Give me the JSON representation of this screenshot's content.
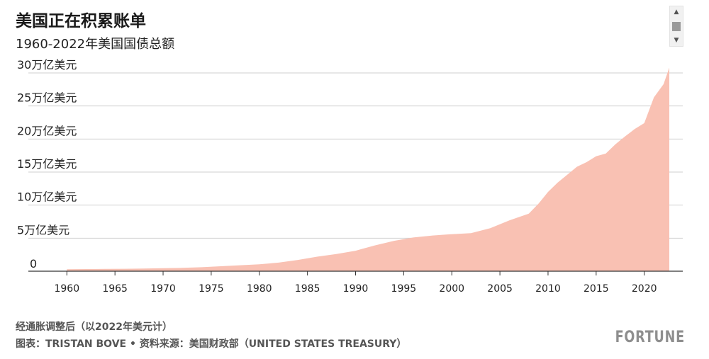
{
  "chart_data": {
    "type": "area",
    "title": "美国正在积累账单",
    "subtitle": "1960-2022年美国国债总额",
    "y_ticks": [
      0,
      5,
      10,
      15,
      20,
      25,
      30
    ],
    "y_tick_labels": [
      "0",
      "5万亿美元",
      "10万亿美元",
      "15万亿美元",
      "20万亿美元",
      "25万亿美元",
      "30万亿美元"
    ],
    "x_ticks": [
      1960,
      1965,
      1970,
      1975,
      1980,
      1985,
      1990,
      1995,
      2000,
      2005,
      2010,
      2015,
      2020
    ],
    "xlim": [
      1956,
      2024
    ],
    "ylim": [
      0,
      30
    ],
    "grid": true,
    "color": "#f9c1b3",
    "x": [
      1960,
      1962,
      1964,
      1966,
      1968,
      1970,
      1972,
      1974,
      1976,
      1978,
      1980,
      1982,
      1984,
      1986,
      1988,
      1990,
      1992,
      1994,
      1996,
      1998,
      2000,
      2002,
      2004,
      2006,
      2008,
      2009,
      2010,
      2011,
      2012,
      2013,
      2014,
      2015,
      2016,
      2017,
      2018,
      2019,
      2020,
      2021,
      2022,
      2022.6
    ],
    "values": [
      0.3,
      0.32,
      0.34,
      0.36,
      0.4,
      0.45,
      0.5,
      0.6,
      0.75,
      0.9,
      1.05,
      1.3,
      1.7,
      2.2,
      2.6,
      3.1,
      3.9,
      4.6,
      5.1,
      5.4,
      5.6,
      5.75,
      6.5,
      7.7,
      8.7,
      10.2,
      12.0,
      13.4,
      14.6,
      15.8,
      16.5,
      17.4,
      17.8,
      19.2,
      20.4,
      21.5,
      22.4,
      26.3,
      28.3,
      30.8
    ]
  },
  "footer": {
    "note": "经通胀调整后（以2022年美元计）",
    "source": "图表：TRISTAN BOVE • 资料来源：美国财政部（UNITED STATES TREASURY）",
    "brand": "FORTUNE"
  },
  "scrollbar": {
    "up_icon": "▲",
    "down_icon": "▼"
  }
}
